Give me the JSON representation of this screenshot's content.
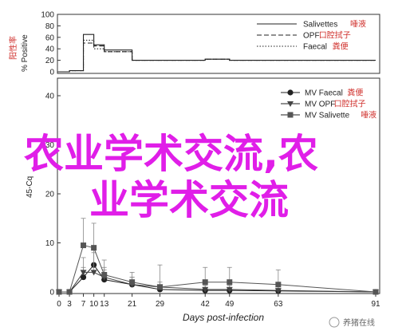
{
  "chart_data": [
    {
      "type": "line",
      "step": true,
      "xlim": [
        0,
        91
      ],
      "ylim": [
        0,
        100
      ],
      "y_ticks": [
        0,
        20,
        40,
        60,
        80,
        100
      ],
      "x": [
        0,
        3,
        7,
        10,
        13,
        21,
        29,
        42,
        49,
        63,
        91
      ],
      "ylabel": "% Positive",
      "ylabel_cn": "阳性率",
      "series": [
        {
          "name": "Salivettes",
          "name_cn": "唾液",
          "style": "solid",
          "values": [
            0,
            2,
            65,
            47,
            38,
            20,
            20,
            22,
            20,
            20,
            20
          ]
        },
        {
          "name": "OPF",
          "name_cn": "口腔拭子",
          "style": "dashed",
          "values": [
            0,
            2,
            50,
            45,
            35,
            20,
            20,
            22,
            20,
            20,
            20
          ]
        },
        {
          "name": "Faecal",
          "name_cn": "粪便",
          "style": "dotted",
          "values": [
            0,
            2,
            55,
            40,
            35,
            20,
            20,
            22,
            20,
            20,
            20
          ]
        }
      ],
      "legend_position": "top-right"
    },
    {
      "type": "line",
      "xlim": [
        0,
        91
      ],
      "ylim": [
        0,
        40
      ],
      "y_ticks": [
        0,
        10,
        20,
        30,
        40
      ],
      "x_ticks": [
        0,
        3,
        7,
        10,
        13,
        21,
        29,
        42,
        49,
        63,
        91
      ],
      "xlabel": "Days post-infection",
      "ylabel": "45-Cq",
      "series": [
        {
          "name": "MV Faecal",
          "name_cn": "粪便",
          "marker": "circle",
          "x": [
            0,
            3,
            7,
            10,
            13,
            21,
            29,
            42,
            49,
            63,
            91
          ],
          "values": [
            0,
            0,
            3,
            5.5,
            2.5,
            1.5,
            0.5,
            0.3,
            0.3,
            0.2,
            0
          ],
          "errors": [
            0,
            0,
            2,
            3,
            2,
            1.5,
            1,
            1,
            1,
            1,
            0
          ]
        },
        {
          "name": "MV OPF",
          "name_cn": "口腔拭子",
          "marker": "triangle-down",
          "x": [
            0,
            3,
            7,
            10,
            13,
            21,
            29,
            42,
            49,
            63,
            91
          ],
          "values": [
            0,
            0,
            4,
            4,
            3,
            1.5,
            1,
            0.5,
            0.5,
            0.3,
            0
          ],
          "errors": [
            0,
            0,
            3,
            4,
            2,
            1.5,
            1,
            1,
            1,
            1,
            0
          ]
        },
        {
          "name": "MV Salivette",
          "name_cn": "唾液",
          "marker": "square",
          "x": [
            0,
            3,
            7,
            10,
            13,
            21,
            29,
            42,
            49,
            63,
            91
          ],
          "values": [
            0,
            0,
            9.5,
            9,
            3.5,
            2,
            1,
            2,
            2,
            1.5,
            0
          ],
          "errors": [
            0,
            0,
            5.5,
            5,
            3,
            2,
            4.5,
            3,
            3,
            3,
            0
          ]
        }
      ],
      "legend_position": "top-right"
    }
  ],
  "overlay_text": [
    "农业学术交流,农",
    "业学术交流"
  ],
  "watermark": "养猪在线"
}
